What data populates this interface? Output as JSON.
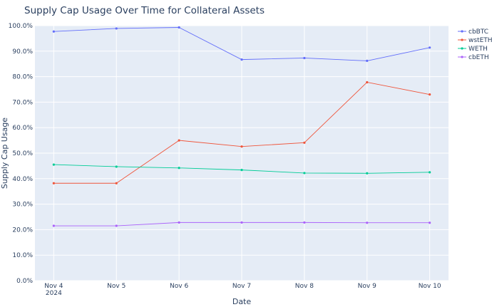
{
  "chart_data": {
    "type": "line",
    "title": "Supply Cap Usage Over Time for Collateral Assets",
    "xlabel": "Date",
    "ylabel": "Supply Cap Usage",
    "categories": [
      "Nov 4",
      "Nov 5",
      "Nov 6",
      "Nov 7",
      "Nov 8",
      "Nov 9",
      "Nov 10"
    ],
    "x_year_label": "2024",
    "ylim": [
      0,
      100
    ],
    "y_ticks": [
      0,
      10,
      20,
      30,
      40,
      50,
      60,
      70,
      80,
      90,
      100
    ],
    "y_tick_labels": [
      "0.0%",
      "10.0%",
      "20.0%",
      "30.0%",
      "40.0%",
      "50.0%",
      "60.0%",
      "70.0%",
      "80.0%",
      "90.0%",
      "100.0%"
    ],
    "grid": true,
    "legend_position": "top-right",
    "series": [
      {
        "name": "cbBTC",
        "color": "#636efa",
        "values": [
          97.7,
          98.9,
          99.3,
          86.7,
          87.3,
          86.2,
          91.4
        ]
      },
      {
        "name": "wstETH",
        "color": "#ef553b",
        "values": [
          38.2,
          38.2,
          55.0,
          52.6,
          54.1,
          77.8,
          73.0
        ]
      },
      {
        "name": "WETH",
        "color": "#00cc96",
        "values": [
          45.5,
          44.7,
          44.2,
          43.4,
          42.2,
          42.1,
          42.5
        ]
      },
      {
        "name": "cbETH",
        "color": "#ab63fa",
        "values": [
          21.5,
          21.5,
          22.8,
          22.8,
          22.8,
          22.7,
          22.7
        ]
      }
    ]
  }
}
